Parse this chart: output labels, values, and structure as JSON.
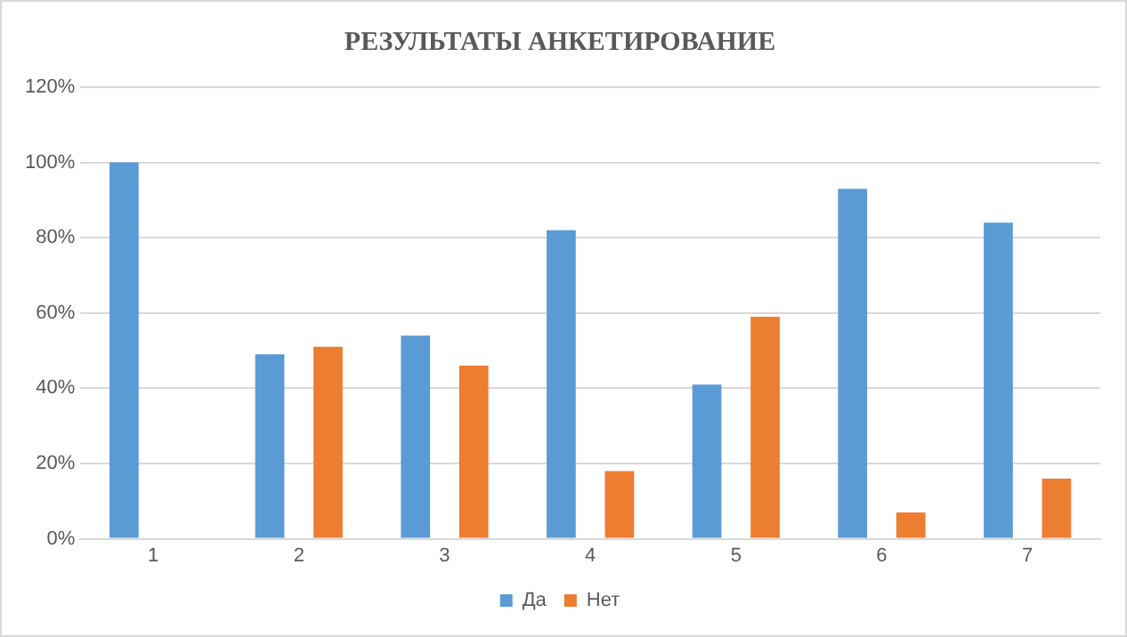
{
  "chart_data": {
    "type": "bar",
    "title": "РЕЗУЛЬТАТЫ АНКЕТИРОВАНИЕ",
    "categories": [
      "1",
      "2",
      "3",
      "4",
      "5",
      "6",
      "7"
    ],
    "series": [
      {
        "name": "Да",
        "color": "#5b9bd5",
        "values": [
          100,
          49,
          54,
          82,
          41,
          93,
          84
        ]
      },
      {
        "name": "Нет",
        "color": "#ed7d31",
        "values": [
          0,
          51,
          46,
          18,
          59,
          7,
          16
        ]
      }
    ],
    "ylim": [
      0,
      120
    ],
    "yticks": [
      {
        "value": 0,
        "label": "0%"
      },
      {
        "value": 20,
        "label": "20%"
      },
      {
        "value": 40,
        "label": "40%"
      },
      {
        "value": 60,
        "label": "60%"
      },
      {
        "value": 80,
        "label": "80%"
      },
      {
        "value": 100,
        "label": "100%"
      },
      {
        "value": 120,
        "label": "120%"
      }
    ],
    "grid": "y",
    "legend": "bottom"
  }
}
